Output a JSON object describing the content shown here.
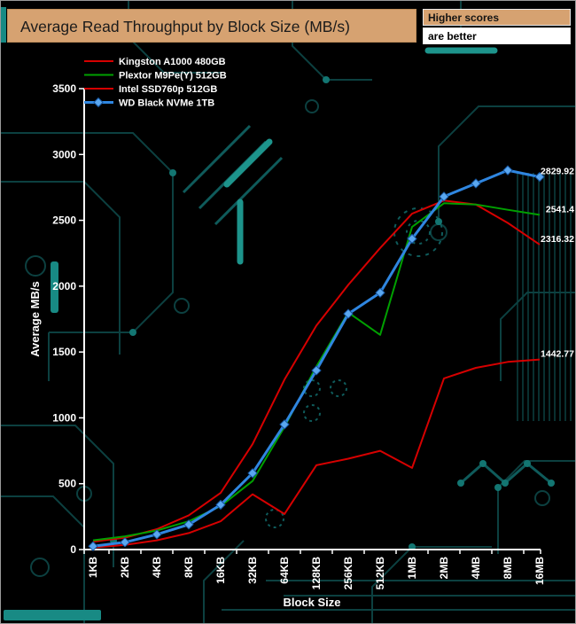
{
  "banner": {
    "higher_scores": "Higher scores",
    "are_better": "are better"
  },
  "colors": {
    "background": "#000000",
    "accent_tan": "#d6a271",
    "axis": "#ffffff",
    "circuit_dim": "#0c4040",
    "circuit_bright": "#1d948c",
    "red": "#d60000",
    "green": "#00a000",
    "blue": "#2f86e0"
  },
  "chart_data": {
    "type": "line",
    "title": "Average Read Throughput by Block Size (MB/s)",
    "xlabel": "Block Size",
    "ylabel": "Average MB/s",
    "ylim": [
      0,
      3500
    ],
    "ytick_step": 500,
    "grid": false,
    "legend_position": "top-left",
    "categories": [
      "1KB",
      "2KB",
      "4KB",
      "8KB",
      "16KB",
      "32KB",
      "64KB",
      "128KB",
      "256KB",
      "512KB",
      "1MB",
      "2MB",
      "4MB",
      "8MB",
      "16MB"
    ],
    "series": [
      {
        "name": "Kingston A1000 480GB",
        "color": "#d60000",
        "marker": "none",
        "end_label": "2316.32",
        "values": [
          60,
          90,
          155,
          260,
          430,
          800,
          1290,
          1700,
          2010,
          2290,
          2550,
          2650,
          2620,
          2480,
          2316.32
        ]
      },
      {
        "name": "Plextor M9Pe(Y) 512GB",
        "color": "#00a000",
        "marker": "none",
        "end_label": "2541.4",
        "values": [
          70,
          100,
          145,
          215,
          330,
          520,
          930,
          1390,
          1800,
          1630,
          2450,
          2630,
          2620,
          2580,
          2541.4
        ]
      },
      {
        "name": "Intel SSD760p 512GB",
        "color": "#d60000",
        "marker": "none",
        "end_label": "1442.77",
        "values": [
          15,
          35,
          70,
          125,
          215,
          420,
          270,
          640,
          690,
          750,
          620,
          1300,
          1380,
          1425,
          1442.77
        ]
      },
      {
        "name": "WD Black NVMe 1TB",
        "color": "#2f86e0",
        "marker": "diamond",
        "marker_fill": "#5aa7f0",
        "marker_stroke": "#15549e",
        "end_label": "2829.92",
        "values": [
          25,
          55,
          115,
          190,
          340,
          580,
          950,
          1360,
          1790,
          1950,
          2360,
          2680,
          2780,
          2880,
          2829.92
        ]
      }
    ]
  }
}
